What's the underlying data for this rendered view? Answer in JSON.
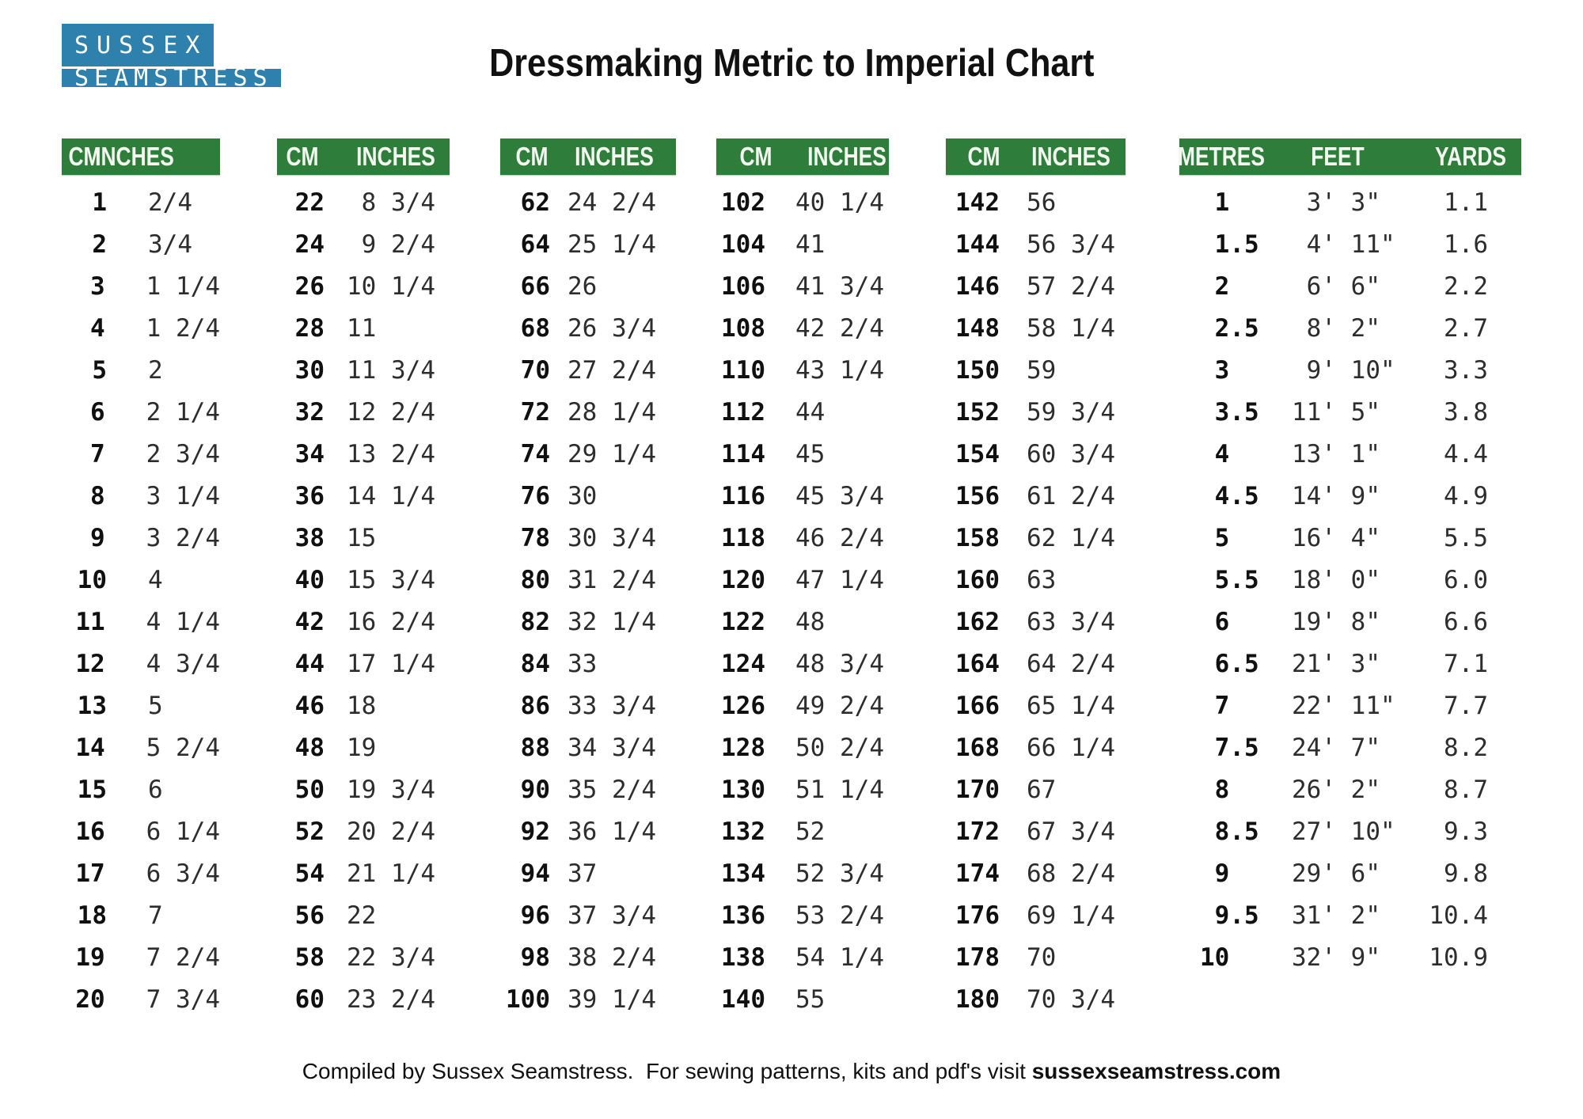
{
  "logo": {
    "line1": "SUSSEX",
    "line2": "SEAMSTRESS"
  },
  "title": "Dressmaking Metric to Imperial Chart",
  "colors": {
    "header_green": "#2e7d3a",
    "logo_blue": "#2e81ad"
  },
  "cm_tables": [
    {
      "col_headers": [
        "CM",
        "INCHES"
      ],
      "rows": [
        [
          "1",
          "2/4"
        ],
        [
          "2",
          "3/4"
        ],
        [
          "3",
          "1 1/4"
        ],
        [
          "4",
          "1 2/4"
        ],
        [
          "5",
          "2"
        ],
        [
          "6",
          "2 1/4"
        ],
        [
          "7",
          "2 3/4"
        ],
        [
          "8",
          "3 1/4"
        ],
        [
          "9",
          "3 2/4"
        ],
        [
          "10",
          "4"
        ],
        [
          "11",
          "4 1/4"
        ],
        [
          "12",
          "4 3/4"
        ],
        [
          "13",
          "5"
        ],
        [
          "14",
          "5 2/4"
        ],
        [
          "15",
          "6"
        ],
        [
          "16",
          "6 1/4"
        ],
        [
          "17",
          "6 3/4"
        ],
        [
          "18",
          "7"
        ],
        [
          "19",
          "7 2/4"
        ],
        [
          "20",
          "7 3/4"
        ]
      ]
    },
    {
      "col_headers": [
        "CM",
        "INCHES"
      ],
      "rows": [
        [
          "22",
          " 8 3/4"
        ],
        [
          "24",
          " 9 2/4"
        ],
        [
          "26",
          "10 1/4"
        ],
        [
          "28",
          "11"
        ],
        [
          "30",
          "11 3/4"
        ],
        [
          "32",
          "12 2/4"
        ],
        [
          "34",
          "13 2/4"
        ],
        [
          "36",
          "14 1/4"
        ],
        [
          "38",
          "15"
        ],
        [
          "40",
          "15 3/4"
        ],
        [
          "42",
          "16 2/4"
        ],
        [
          "44",
          "17 1/4"
        ],
        [
          "46",
          "18"
        ],
        [
          "48",
          "19"
        ],
        [
          "50",
          "19 3/4"
        ],
        [
          "52",
          "20 2/4"
        ],
        [
          "54",
          "21 1/4"
        ],
        [
          "56",
          "22"
        ],
        [
          "58",
          "22 3/4"
        ],
        [
          "60",
          "23 2/4"
        ]
      ]
    },
    {
      "col_headers": [
        "CM",
        "INCHES"
      ],
      "rows": [
        [
          "62",
          "24 2/4"
        ],
        [
          "64",
          "25 1/4"
        ],
        [
          "66",
          "26"
        ],
        [
          "68",
          "26 3/4"
        ],
        [
          "70",
          "27 2/4"
        ],
        [
          "72",
          "28 1/4"
        ],
        [
          "74",
          "29 1/4"
        ],
        [
          "76",
          "30"
        ],
        [
          "78",
          "30 3/4"
        ],
        [
          "80",
          "31 2/4"
        ],
        [
          "82",
          "32 1/4"
        ],
        [
          "84",
          "33"
        ],
        [
          "86",
          "33 3/4"
        ],
        [
          "88",
          "34 3/4"
        ],
        [
          "90",
          "35 2/4"
        ],
        [
          "92",
          "36 1/4"
        ],
        [
          "94",
          "37"
        ],
        [
          "96",
          "37 3/4"
        ],
        [
          "98",
          "38 2/4"
        ],
        [
          "100",
          "39 1/4"
        ]
      ]
    },
    {
      "col_headers": [
        "CM",
        "INCHES"
      ],
      "rows": [
        [
          "102",
          "40 1/4"
        ],
        [
          "104",
          "41"
        ],
        [
          "106",
          "41 3/4"
        ],
        [
          "108",
          "42 2/4"
        ],
        [
          "110",
          "43 1/4"
        ],
        [
          "112",
          "44"
        ],
        [
          "114",
          "45"
        ],
        [
          "116",
          "45 3/4"
        ],
        [
          "118",
          "46 2/4"
        ],
        [
          "120",
          "47 1/4"
        ],
        [
          "122",
          "48"
        ],
        [
          "124",
          "48 3/4"
        ],
        [
          "126",
          "49 2/4"
        ],
        [
          "128",
          "50 2/4"
        ],
        [
          "130",
          "51 1/4"
        ],
        [
          "132",
          "52"
        ],
        [
          "134",
          "52 3/4"
        ],
        [
          "136",
          "53 2/4"
        ],
        [
          "138",
          "54 1/4"
        ],
        [
          "140",
          "55"
        ]
      ]
    },
    {
      "col_headers": [
        "CM",
        "INCHES"
      ],
      "rows": [
        [
          "142",
          "56"
        ],
        [
          "144",
          "56 3/4"
        ],
        [
          "146",
          "57 2/4"
        ],
        [
          "148",
          "58 1/4"
        ],
        [
          "150",
          "59"
        ],
        [
          "152",
          "59 3/4"
        ],
        [
          "154",
          "60 3/4"
        ],
        [
          "156",
          "61 2/4"
        ],
        [
          "158",
          "62 1/4"
        ],
        [
          "160",
          "63"
        ],
        [
          "162",
          "63 3/4"
        ],
        [
          "164",
          "64 2/4"
        ],
        [
          "166",
          "65 1/4"
        ],
        [
          "168",
          "66 1/4"
        ],
        [
          "170",
          "67"
        ],
        [
          "172",
          "67 3/4"
        ],
        [
          "174",
          "68 2/4"
        ],
        [
          "176",
          "69 1/4"
        ],
        [
          "178",
          "70"
        ],
        [
          "180",
          "70 3/4"
        ]
      ]
    }
  ],
  "metres_table": {
    "col_headers": [
      "METRES",
      "FEET",
      "YARDS"
    ],
    "rows": [
      [
        " 1",
        " 3' 3\"",
        "1.1"
      ],
      [
        " 1.5",
        " 4' 11\"",
        "1.6"
      ],
      [
        " 2",
        " 6' 6\"",
        "2.2"
      ],
      [
        " 2.5",
        " 8' 2\"",
        "2.7"
      ],
      [
        " 3",
        " 9' 10\"",
        "3.3"
      ],
      [
        " 3.5",
        "11' 5\"",
        "3.8"
      ],
      [
        " 4",
        "13' 1\"",
        "4.4"
      ],
      [
        " 4.5",
        "14' 9\"",
        "4.9"
      ],
      [
        " 5",
        "16' 4\"",
        "5.5"
      ],
      [
        " 5.5",
        "18' 0\"",
        "6.0"
      ],
      [
        " 6",
        "19' 8\"",
        "6.6"
      ],
      [
        " 6.5",
        "21' 3\"",
        "7.1"
      ],
      [
        " 7",
        "22' 11\"",
        "7.7"
      ],
      [
        " 7.5",
        "24' 7\"",
        "8.2"
      ],
      [
        " 8",
        "26' 2\"",
        "8.7"
      ],
      [
        " 8.5",
        "27' 10\"",
        "9.3"
      ],
      [
        " 9",
        "29' 6\"",
        "9.8"
      ],
      [
        " 9.5",
        "31' 2\"",
        "10.4"
      ],
      [
        "10",
        "32' 9\"",
        "10.9"
      ]
    ]
  },
  "footer": {
    "prefix": "Compiled by Sussex Seamstress.  For sewing patterns, kits and pdf's visit ",
    "site": "sussexseamstress.com"
  }
}
